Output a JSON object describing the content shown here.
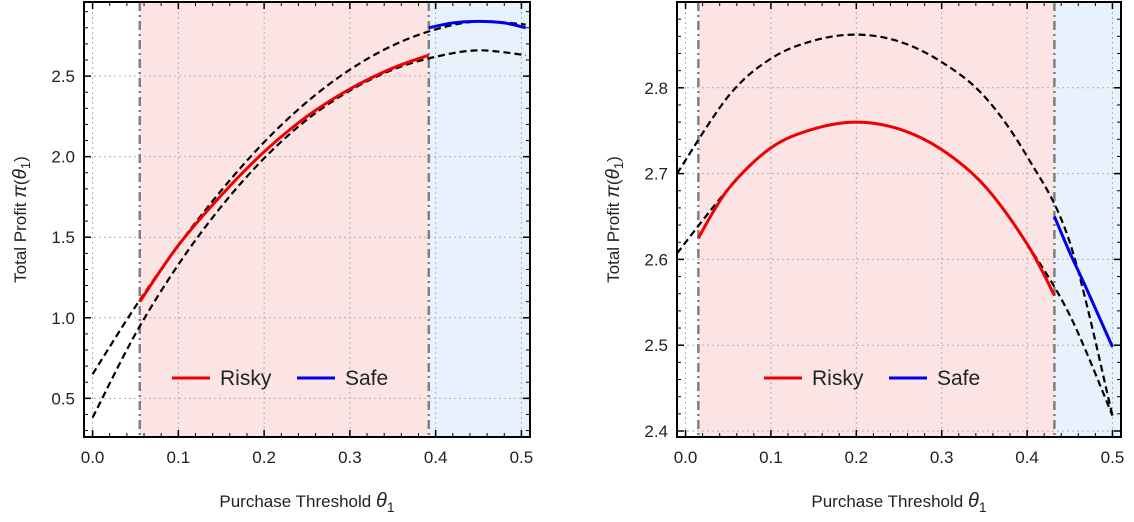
{
  "colors": {
    "risky": "#ee0000",
    "safe": "#0000ee",
    "dashed": "#000000",
    "risky_region": "#fde4e4",
    "safe_region": "#e8f2fd",
    "threshold_line": "#808080"
  },
  "chart_data": [
    {
      "type": "line",
      "xlabel": "Purchase Threshold θ1",
      "ylabel": "Total Profit π(θ1)",
      "xlim": [
        -0.01,
        0.51
      ],
      "ylim": [
        0.26,
        2.96
      ],
      "xticks": [
        "0.0",
        "0.1",
        "0.2",
        "0.3",
        "0.4",
        "0.5"
      ],
      "yticks": [
        "0.5",
        "1.0",
        "1.5",
        "2.0",
        "2.5"
      ],
      "grid": true,
      "legend_position": "bottom-center",
      "legend": [
        "Risky",
        "Safe"
      ],
      "regions": [
        {
          "label": "Risky",
          "x_from": 0.055,
          "x_to": 0.392
        },
        {
          "label": "Safe",
          "x_from": 0.392,
          "x_to": 0.51
        }
      ],
      "vertical_lines": [
        0.055,
        0.392
      ],
      "series": [
        {
          "name": "Risky",
          "style": "solid",
          "x": [
            0.055,
            0.1,
            0.15,
            0.2,
            0.25,
            0.3,
            0.35,
            0.392
          ],
          "y": [
            1.1,
            1.45,
            1.76,
            2.03,
            2.25,
            2.42,
            2.55,
            2.63
          ]
        },
        {
          "name": "Safe",
          "style": "solid",
          "x": [
            0.392,
            0.42,
            0.45,
            0.48,
            0.505
          ],
          "y": [
            2.8,
            2.83,
            2.84,
            2.83,
            2.8
          ]
        },
        {
          "style": "dashed",
          "x": [
            0.0,
            0.05,
            0.1,
            0.15,
            0.2,
            0.25,
            0.3,
            0.35,
            0.4,
            0.45,
            0.505
          ],
          "y": [
            0.65,
            1.07,
            1.45,
            1.79,
            2.09,
            2.34,
            2.54,
            2.69,
            2.79,
            2.84,
            2.82
          ]
        },
        {
          "style": "dashed",
          "x": [
            0.0,
            0.05,
            0.1,
            0.15,
            0.2,
            0.25,
            0.3,
            0.35,
            0.4,
            0.45,
            0.505
          ],
          "y": [
            0.38,
            0.9,
            1.33,
            1.69,
            1.99,
            2.23,
            2.41,
            2.54,
            2.62,
            2.66,
            2.63
          ]
        }
      ]
    },
    {
      "type": "line",
      "xlabel": "Purchase Threshold θ1",
      "ylabel": "Total Profit π(θ1)",
      "xlim": [
        -0.01,
        0.51
      ],
      "ylim": [
        2.393,
        2.9
      ],
      "xticks": [
        "0.0",
        "0.1",
        "0.2",
        "0.3",
        "0.4",
        "0.5"
      ],
      "yticks": [
        "2.4",
        "2.5",
        "2.6",
        "2.7",
        "2.8"
      ],
      "grid": true,
      "legend_position": "bottom-center",
      "legend": [
        "Risky",
        "Safe"
      ],
      "regions": [
        {
          "label": "Risky",
          "x_from": 0.015,
          "x_to": 0.432
        },
        {
          "label": "Safe",
          "x_from": 0.432,
          "x_to": 0.51
        }
      ],
      "vertical_lines": [
        0.015,
        0.432
      ],
      "series": [
        {
          "name": "Risky",
          "style": "solid",
          "x": [
            0.015,
            0.05,
            0.1,
            0.15,
            0.2,
            0.25,
            0.3,
            0.35,
            0.4,
            0.432
          ],
          "y": [
            2.625,
            2.682,
            2.73,
            2.752,
            2.76,
            2.752,
            2.728,
            2.686,
            2.618,
            2.558
          ]
        },
        {
          "name": "Safe",
          "style": "solid",
          "x": [
            0.432,
            0.45,
            0.47,
            0.5
          ],
          "y": [
            2.65,
            2.608,
            2.565,
            2.498
          ]
        },
        {
          "style": "dashed",
          "x": [
            -0.01,
            0.05,
            0.1,
            0.15,
            0.2,
            0.25,
            0.3,
            0.35,
            0.4,
            0.45,
            0.5
          ],
          "y": [
            2.7,
            2.79,
            2.834,
            2.855,
            2.862,
            2.854,
            2.83,
            2.79,
            2.72,
            2.62,
            2.418
          ]
        },
        {
          "style": "dashed",
          "x": [
            -0.01,
            0.05,
            0.1,
            0.15,
            0.2,
            0.25,
            0.3,
            0.35,
            0.4,
            0.45,
            0.5
          ],
          "y": [
            2.607,
            2.682,
            2.73,
            2.752,
            2.76,
            2.752,
            2.728,
            2.686,
            2.618,
            2.535,
            2.418
          ]
        }
      ]
    }
  ]
}
